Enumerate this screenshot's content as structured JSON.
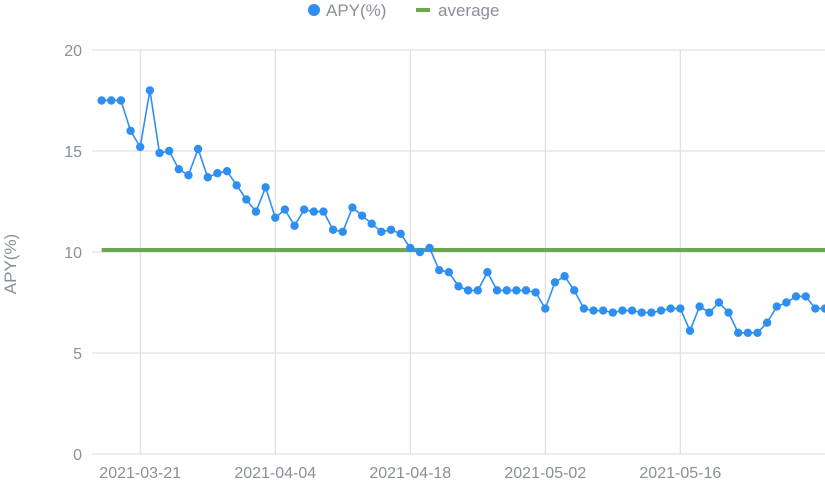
{
  "chart_data": {
    "type": "line",
    "legend": {
      "placement": "top-center",
      "items": [
        {
          "label": "APY(%)",
          "marker": "circle"
        },
        {
          "label": "average",
          "marker": "line"
        }
      ]
    },
    "ylabel": "APY(%)",
    "xlabel": "",
    "ylim": [
      0,
      20
    ],
    "yticks": [
      "0",
      "5",
      "10",
      "15",
      "20"
    ],
    "xlim": [
      "2021-03-16",
      "2021-05-31"
    ],
    "xticks": [
      "2021-03-21",
      "2021-04-04",
      "2021-04-18",
      "2021-05-02",
      "2021-05-16"
    ],
    "grid": true,
    "colors": {
      "series": "#2f8ff0",
      "average": "#6aa84f",
      "grid": "#d9d9d9",
      "text": "#8a8f9a"
    },
    "series": [
      {
        "name": "APY(%)",
        "x": [
          "2021-03-17",
          "2021-03-18",
          "2021-03-19",
          "2021-03-20",
          "2021-03-21",
          "2021-03-22",
          "2021-03-23",
          "2021-03-24",
          "2021-03-25",
          "2021-03-26",
          "2021-03-27",
          "2021-03-28",
          "2021-03-29",
          "2021-03-30",
          "2021-03-31",
          "2021-04-01",
          "2021-04-02",
          "2021-04-03",
          "2021-04-04",
          "2021-04-05",
          "2021-04-06",
          "2021-04-07",
          "2021-04-08",
          "2021-04-09",
          "2021-04-10",
          "2021-04-11",
          "2021-04-12",
          "2021-04-13",
          "2021-04-14",
          "2021-04-15",
          "2021-04-16",
          "2021-04-17",
          "2021-04-18",
          "2021-04-19",
          "2021-04-20",
          "2021-04-21",
          "2021-04-22",
          "2021-04-23",
          "2021-04-24",
          "2021-04-25",
          "2021-04-26",
          "2021-04-27",
          "2021-04-28",
          "2021-04-29",
          "2021-04-30",
          "2021-05-01",
          "2021-05-02",
          "2021-05-03",
          "2021-05-04",
          "2021-05-05",
          "2021-05-06",
          "2021-05-07",
          "2021-05-08",
          "2021-05-09",
          "2021-05-10",
          "2021-05-11",
          "2021-05-12",
          "2021-05-13",
          "2021-05-14",
          "2021-05-15",
          "2021-05-16",
          "2021-05-17",
          "2021-05-18",
          "2021-05-19",
          "2021-05-20",
          "2021-05-21",
          "2021-05-22",
          "2021-05-23",
          "2021-05-24",
          "2021-05-25",
          "2021-05-26",
          "2021-05-27",
          "2021-05-28",
          "2021-05-29",
          "2021-05-30",
          "2021-05-31"
        ],
        "values": [
          17.5,
          17.5,
          17.5,
          16.0,
          15.2,
          18.0,
          14.9,
          15.0,
          14.1,
          13.8,
          15.1,
          13.7,
          13.9,
          14.0,
          13.3,
          12.6,
          12.0,
          13.2,
          11.7,
          12.1,
          11.3,
          12.1,
          12.0,
          12.0,
          11.1,
          11.0,
          12.2,
          11.8,
          11.4,
          11.0,
          11.1,
          10.9,
          10.2,
          10.0,
          10.2,
          9.1,
          9.0,
          8.3,
          8.1,
          8.1,
          9.0,
          8.1,
          8.1,
          8.1,
          8.1,
          8.0,
          7.2,
          8.5,
          8.8,
          8.1,
          7.2,
          7.1,
          7.1,
          7.0,
          7.1,
          7.1,
          7.0,
          7.0,
          7.1,
          7.2,
          7.2,
          6.1,
          7.3,
          7.0,
          7.5,
          7.0,
          6.0,
          6.0,
          6.0,
          6.5,
          7.3,
          7.5,
          7.8,
          7.8,
          7.2,
          7.2
        ]
      },
      {
        "name": "average",
        "x": [
          "2021-03-17",
          "2021-05-31"
        ],
        "values": [
          10.1,
          10.1
        ]
      }
    ]
  }
}
